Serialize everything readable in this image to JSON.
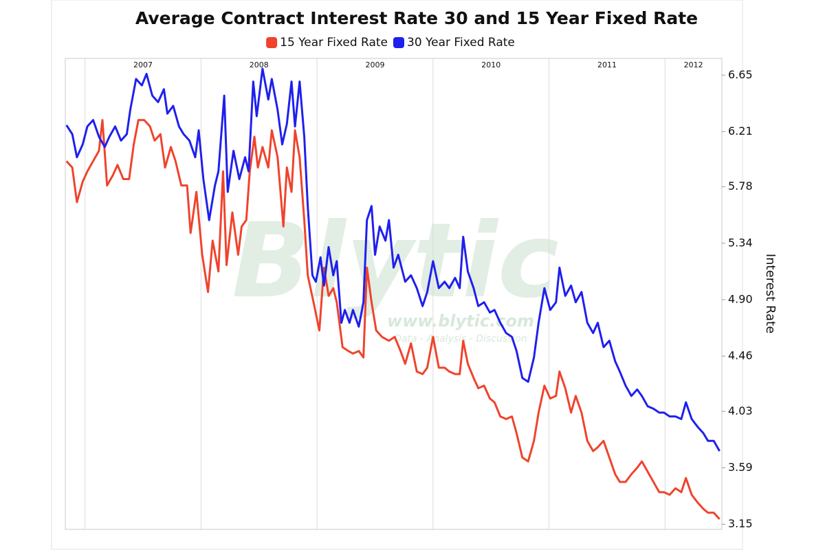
{
  "chart_data": {
    "type": "line",
    "title": "Average Contract Interest Rate 30 and 15 Year Fixed Rate",
    "y_label": "Interest Rate",
    "watermark": [
      "Blytic",
      "www.blytic.com",
      "Data - Analysis - Discussion"
    ],
    "legend": "top",
    "grid": "x",
    "xlim": [
      2006.83,
      2012.49
    ],
    "xticks": [
      2007,
      2008,
      2009,
      2010,
      2011,
      2012
    ],
    "ylim": [
      3.11,
      6.78
    ],
    "yticks": [
      3.15,
      3.59,
      4.03,
      4.46,
      {
        "value": 4.9,
        "label": "4.90"
      },
      5.34,
      5.78,
      6.21,
      6.65
    ],
    "series": [
      {
        "name": "15 Year Fixed Rate",
        "color": "#f0432c",
        "x": [
          2006.84,
          2006.89,
          2006.93,
          2006.98,
          2007.02,
          2007.07,
          2007.12,
          2007.15,
          2007.19,
          2007.24,
          2007.28,
          2007.33,
          2007.38,
          2007.42,
          2007.46,
          2007.51,
          2007.56,
          2007.6,
          2007.65,
          2007.69,
          2007.74,
          2007.78,
          2007.83,
          2007.88,
          2007.91,
          2007.96,
          2008.01,
          2008.06,
          2008.1,
          2008.15,
          2008.19,
          2008.22,
          2008.27,
          2008.32,
          2008.35,
          2008.39,
          2008.42,
          2008.46,
          2008.49,
          2008.53,
          2008.58,
          2008.61,
          2008.66,
          2008.71,
          2008.74,
          2008.78,
          2008.81,
          2008.85,
          2008.89,
          2008.92,
          2008.97,
          2009.02,
          2009.06,
          2009.1,
          2009.14,
          2009.17,
          2009.22,
          2009.27,
          2009.31,
          2009.36,
          2009.4,
          2009.43,
          2009.47,
          2009.51,
          2009.56,
          2009.62,
          2009.67,
          2009.72,
          2009.76,
          2009.81,
          2009.86,
          2009.91,
          2009.95,
          2010.0,
          2010.05,
          2010.1,
          2010.14,
          2010.19,
          2010.23,
          2010.26,
          2010.3,
          2010.35,
          2010.39,
          2010.44,
          2010.49,
          2010.53,
          2010.58,
          2010.63,
          2010.68,
          2010.72,
          2010.77,
          2010.82,
          2010.87,
          2010.91,
          2010.96,
          2011.01,
          2011.06,
          2011.09,
          2011.14,
          2011.19,
          2011.23,
          2011.28,
          2011.33,
          2011.38,
          2011.42,
          2011.47,
          2011.52,
          2011.57,
          2011.61,
          2011.66,
          2011.71,
          2011.76,
          2011.8,
          2011.85,
          2011.9,
          2011.95,
          2011.99,
          2012.04,
          2012.09,
          2012.14,
          2012.18,
          2012.23,
          2012.28,
          2012.33,
          2012.37,
          2012.42,
          2012.47
        ],
        "values": [
          5.98,
          5.93,
          5.66,
          5.82,
          5.9,
          5.98,
          6.06,
          6.3,
          5.79,
          5.87,
          5.95,
          5.84,
          5.84,
          6.11,
          6.3,
          6.3,
          6.25,
          6.14,
          6.19,
          5.93,
          6.09,
          5.98,
          5.79,
          5.79,
          5.42,
          5.74,
          5.25,
          4.96,
          5.36,
          5.12,
          5.9,
          5.17,
          5.58,
          5.25,
          5.47,
          5.52,
          5.9,
          6.17,
          5.93,
          6.09,
          5.93,
          6.22,
          6.01,
          5.47,
          5.93,
          5.74,
          6.22,
          6.01,
          5.52,
          5.09,
          4.88,
          4.66,
          5.15,
          4.93,
          4.99,
          4.88,
          4.53,
          4.5,
          4.48,
          4.5,
          4.45,
          5.15,
          4.88,
          4.66,
          4.61,
          4.58,
          4.61,
          4.5,
          4.4,
          4.56,
          4.34,
          4.32,
          4.37,
          4.61,
          4.37,
          4.37,
          4.34,
          4.32,
          4.32,
          4.58,
          4.4,
          4.29,
          4.21,
          4.23,
          4.13,
          4.1,
          3.99,
          3.97,
          3.99,
          3.86,
          3.67,
          3.64,
          3.8,
          4.02,
          4.23,
          4.13,
          4.15,
          4.34,
          4.21,
          4.02,
          4.15,
          4.02,
          3.8,
          3.72,
          3.75,
          3.8,
          3.67,
          3.54,
          3.48,
          3.48,
          3.54,
          3.59,
          3.64,
          3.56,
          3.48,
          3.4,
          3.4,
          3.38,
          3.43,
          3.4,
          3.51,
          3.38,
          3.32,
          3.27,
          3.24,
          3.24,
          3.19
        ]
      },
      {
        "name": "30 Year Fixed Rate",
        "color": "#1f1fee",
        "x": [
          2006.84,
          2006.89,
          2006.93,
          2006.98,
          2007.02,
          2007.07,
          2007.12,
          2007.17,
          2007.21,
          2007.26,
          2007.31,
          2007.36,
          2007.39,
          2007.44,
          2007.49,
          2007.53,
          2007.58,
          2007.63,
          2007.68,
          2007.71,
          2007.76,
          2007.81,
          2007.85,
          2007.9,
          2007.95,
          2007.98,
          2008.02,
          2008.07,
          2008.12,
          2008.15,
          2008.2,
          2008.23,
          2008.28,
          2008.33,
          2008.38,
          2008.41,
          2008.45,
          2008.48,
          2008.53,
          2008.58,
          2008.61,
          2008.66,
          2008.7,
          2008.74,
          2008.78,
          2008.81,
          2008.85,
          2008.89,
          2008.92,
          2008.96,
          2008.99,
          2009.03,
          2009.06,
          2009.1,
          2009.14,
          2009.17,
          2009.21,
          2009.24,
          2009.28,
          2009.31,
          2009.36,
          2009.4,
          2009.43,
          2009.47,
          2009.5,
          2009.54,
          2009.59,
          2009.62,
          2009.66,
          2009.7,
          2009.76,
          2009.81,
          2009.86,
          2009.91,
          2009.95,
          2010.0,
          2010.05,
          2010.1,
          2010.14,
          2010.19,
          2010.23,
          2010.26,
          2010.3,
          2010.35,
          2010.39,
          2010.44,
          2010.49,
          2010.53,
          2010.58,
          2010.63,
          2010.68,
          2010.72,
          2010.77,
          2010.82,
          2010.87,
          2010.91,
          2010.96,
          2011.01,
          2011.06,
          2011.09,
          2011.14,
          2011.19,
          2011.23,
          2011.28,
          2011.33,
          2011.38,
          2011.42,
          2011.47,
          2011.52,
          2011.57,
          2011.61,
          2011.66,
          2011.71,
          2011.76,
          2011.8,
          2011.85,
          2011.9,
          2011.95,
          2011.99,
          2012.04,
          2012.09,
          2012.14,
          2012.18,
          2012.23,
          2012.28,
          2012.33,
          2012.37,
          2012.42,
          2012.47
        ],
        "values": [
          6.26,
          6.19,
          6.01,
          6.11,
          6.25,
          6.3,
          6.17,
          6.09,
          6.17,
          6.25,
          6.14,
          6.19,
          6.38,
          6.62,
          6.57,
          6.66,
          6.49,
          6.44,
          6.54,
          6.35,
          6.41,
          6.25,
          6.19,
          6.14,
          6.01,
          6.22,
          5.84,
          5.52,
          5.79,
          5.9,
          6.49,
          5.74,
          6.06,
          5.84,
          6.01,
          5.9,
          6.6,
          6.33,
          6.7,
          6.46,
          6.62,
          6.38,
          6.11,
          6.27,
          6.6,
          6.25,
          6.6,
          6.17,
          5.63,
          5.09,
          5.04,
          5.23,
          5.01,
          5.31,
          5.09,
          5.2,
          4.72,
          4.82,
          4.72,
          4.82,
          4.69,
          4.88,
          5.52,
          5.63,
          5.25,
          5.47,
          5.36,
          5.52,
          5.15,
          5.25,
          5.04,
          5.09,
          4.99,
          4.85,
          4.96,
          5.2,
          4.99,
          5.04,
          4.99,
          5.07,
          4.99,
          5.39,
          5.12,
          4.99,
          4.85,
          4.88,
          4.8,
          4.82,
          4.72,
          4.64,
          4.61,
          4.5,
          4.29,
          4.26,
          4.45,
          4.72,
          4.99,
          4.82,
          4.88,
          5.15,
          4.93,
          5.01,
          4.88,
          4.96,
          4.72,
          4.64,
          4.72,
          4.53,
          4.58,
          4.42,
          4.34,
          4.23,
          4.15,
          4.2,
          4.15,
          4.07,
          4.05,
          4.02,
          4.02,
          3.99,
          3.99,
          3.97,
          4.1,
          3.97,
          3.91,
          3.86,
          3.8,
          3.8,
          3.72
        ]
      }
    ]
  }
}
